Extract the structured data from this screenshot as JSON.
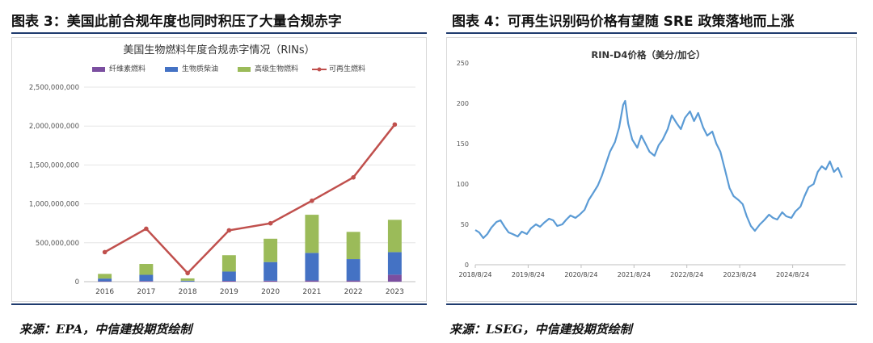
{
  "left_panel": {
    "figure_title": "图表 3：美国此前合规年度也同时积压了大量合规赤字",
    "source": "来源：EPA，中信建投期货绘制"
  },
  "right_panel": {
    "figure_title": "图表 4：可再生识别码价格有望随 SRE 政策落地而上涨",
    "source": "来源：LSEG，中信建投期货绘制"
  },
  "chart_data": [
    {
      "type": "bar",
      "title": "美国生物燃料年度合规赤字情况（RINs）",
      "categories": [
        "2016",
        "2017",
        "2018",
        "2019",
        "2020",
        "2021",
        "2022",
        "2023"
      ],
      "stacked": true,
      "ylim": [
        0,
        2500000000
      ],
      "yticks": [
        0,
        500000000,
        1000000000,
        1500000000,
        2000000000,
        2500000000
      ],
      "ytick_labels": [
        "0",
        "500,000,000",
        "1,000,000,000",
        "1,500,000,000",
        "2,000,000,000",
        "2,500,000,000"
      ],
      "legend_position": "top",
      "series": [
        {
          "name": "纤维素燃料",
          "kind": "bar",
          "color": "#7b4fa0",
          "values": [
            5000000,
            8000000,
            2000000,
            10000000,
            12000000,
            15000000,
            15000000,
            90000000
          ]
        },
        {
          "name": "生物质柴油",
          "kind": "bar",
          "color": "#4472c4",
          "values": [
            35000000,
            80000000,
            10000000,
            120000000,
            240000000,
            355000000,
            275000000,
            290000000
          ]
        },
        {
          "name": "高级生物燃料",
          "kind": "bar",
          "color": "#9bbb59",
          "values": [
            60000000,
            140000000,
            30000000,
            210000000,
            300000000,
            490000000,
            350000000,
            415000000
          ]
        },
        {
          "name": "可再生燃料",
          "kind": "line",
          "color": "#c0504d",
          "values": [
            380000000,
            680000000,
            110000000,
            660000000,
            750000000,
            1040000000,
            1340000000,
            2020000000
          ]
        }
      ]
    },
    {
      "type": "line",
      "title": "RIN-D4价格（美分/加仑）",
      "xlim": [
        "2018-08-24",
        "2025-08-24"
      ],
      "xticks": [
        "2018-08-24",
        "2019-08-24",
        "2020-08-24",
        "2021-08-24",
        "2022-08-24",
        "2023-08-24",
        "2024-08-24"
      ],
      "xtick_labels": [
        "2018/8/24",
        "2019/8/24",
        "2020/8/24",
        "2021/8/24",
        "2022/8/24",
        "2023/8/24",
        "2024/8/24"
      ],
      "ylim": [
        0,
        250
      ],
      "yticks": [
        0,
        50,
        100,
        150,
        200,
        250
      ],
      "series": [
        {
          "color": "#5b9bd5",
          "points": [
            [
              "2018-08-24",
              43
            ],
            [
              "2018-09-20",
              40
            ],
            [
              "2018-10-18",
              33
            ],
            [
              "2018-11-15",
              38
            ],
            [
              "2018-12-13",
              46
            ],
            [
              "2019-01-17",
              53
            ],
            [
              "2019-02-14",
              55
            ],
            [
              "2019-03-14",
              47
            ],
            [
              "2019-04-11",
              40
            ],
            [
              "2019-05-09",
              38
            ],
            [
              "2019-06-13",
              35
            ],
            [
              "2019-07-11",
              41
            ],
            [
              "2019-08-15",
              38
            ],
            [
              "2019-09-12",
              45
            ],
            [
              "2019-10-17",
              50
            ],
            [
              "2019-11-14",
              47
            ],
            [
              "2019-12-12",
              52
            ],
            [
              "2020-01-16",
              57
            ],
            [
              "2020-02-13",
              55
            ],
            [
              "2020-03-12",
              48
            ],
            [
              "2020-04-16",
              50
            ],
            [
              "2020-05-14",
              56
            ],
            [
              "2020-06-11",
              61
            ],
            [
              "2020-07-16",
              58
            ],
            [
              "2020-08-13",
              62
            ],
            [
              "2020-09-17",
              68
            ],
            [
              "2020-10-15",
              80
            ],
            [
              "2020-11-12",
              88
            ],
            [
              "2020-12-17",
              98
            ],
            [
              "2021-01-14",
              110
            ],
            [
              "2021-02-11",
              125
            ],
            [
              "2021-03-11",
              140
            ],
            [
              "2021-04-15",
              152
            ],
            [
              "2021-05-13",
              170
            ],
            [
              "2021-06-10",
              198
            ],
            [
              "2021-06-24",
              203
            ],
            [
              "2021-07-15",
              175
            ],
            [
              "2021-08-12",
              155
            ],
            [
              "2021-09-16",
              145
            ],
            [
              "2021-10-14",
              160
            ],
            [
              "2021-11-11",
              150
            ],
            [
              "2021-12-09",
              140
            ],
            [
              "2022-01-13",
              135
            ],
            [
              "2022-02-10",
              148
            ],
            [
              "2022-03-10",
              155
            ],
            [
              "2022-04-14",
              168
            ],
            [
              "2022-05-12",
              185
            ],
            [
              "2022-06-16",
              175
            ],
            [
              "2022-07-14",
              168
            ],
            [
              "2022-08-11",
              182
            ],
            [
              "2022-09-15",
              190
            ],
            [
              "2022-10-13",
              178
            ],
            [
              "2022-11-10",
              188
            ],
            [
              "2022-12-15",
              170
            ],
            [
              "2023-01-12",
              160
            ],
            [
              "2023-02-16",
              165
            ],
            [
              "2023-03-16",
              150
            ],
            [
              "2023-04-13",
              140
            ],
            [
              "2023-05-11",
              120
            ],
            [
              "2023-06-15",
              95
            ],
            [
              "2023-07-13",
              85
            ],
            [
              "2023-08-17",
              80
            ],
            [
              "2023-09-14",
              75
            ],
            [
              "2023-10-12",
              60
            ],
            [
              "2023-11-09",
              48
            ],
            [
              "2023-12-07",
              42
            ],
            [
              "2024-01-11",
              50
            ],
            [
              "2024-02-08",
              55
            ],
            [
              "2024-03-14",
              62
            ],
            [
              "2024-04-11",
              58
            ],
            [
              "2024-05-09",
              56
            ],
            [
              "2024-06-13",
              65
            ],
            [
              "2024-07-11",
              60
            ],
            [
              "2024-08-15",
              58
            ],
            [
              "2024-09-12",
              66
            ],
            [
              "2024-10-17",
              72
            ],
            [
              "2024-11-14",
              85
            ],
            [
              "2024-12-12",
              96
            ],
            [
              "2025-01-16",
              100
            ],
            [
              "2025-02-13",
              115
            ],
            [
              "2025-03-13",
              122
            ],
            [
              "2025-04-10",
              118
            ],
            [
              "2025-05-08",
              128
            ],
            [
              "2025-06-05",
              115
            ],
            [
              "2025-07-03",
              120
            ],
            [
              "2025-07-31",
              108
            ]
          ]
        }
      ]
    }
  ]
}
